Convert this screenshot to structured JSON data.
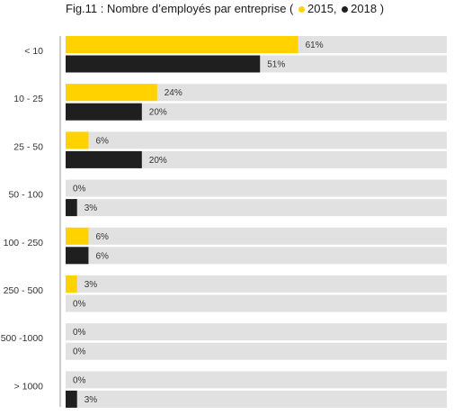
{
  "title": {
    "prefix": "Fig.11 : Nombre d’employés par entreprise (",
    "separator": ",",
    "suffix": ")"
  },
  "colors": {
    "series_2015": "#ffd200",
    "series_2018": "#1f1f1f",
    "track": "#e2e1e1",
    "axis": "#9a9a9a",
    "text": "#333333"
  },
  "chart_data": {
    "type": "bar",
    "orientation": "horizontal",
    "title": "Fig.11 : Nombre d’employés par entreprise",
    "categories": [
      "< 10",
      "10 - 25",
      "25 - 50",
      "50 - 100",
      "100 - 250",
      "250 - 500",
      "500 -1000",
      "> 1000"
    ],
    "series": [
      {
        "name": "2015",
        "values": [
          61,
          24,
          6,
          0,
          6,
          3,
          0,
          0
        ],
        "color": "#ffd200"
      },
      {
        "name": "2018",
        "values": [
          51,
          20,
          20,
          3,
          6,
          0,
          0,
          3
        ],
        "color": "#1f1f1f"
      }
    ],
    "value_suffix": "%",
    "xlim": [
      0,
      100
    ],
    "grid": false,
    "legend": "title"
  }
}
